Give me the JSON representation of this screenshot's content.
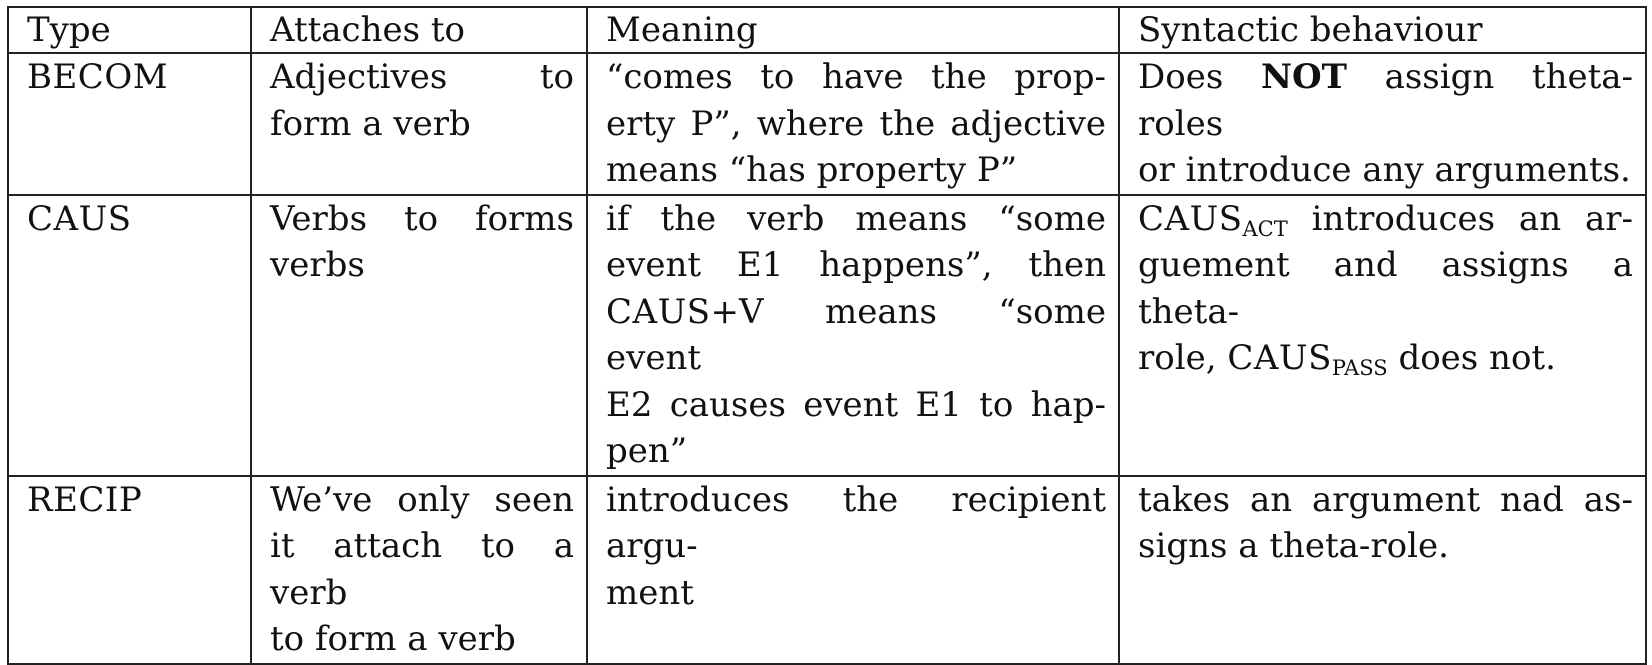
{
  "headers": {
    "type": "Type",
    "attaches": "Attaches to",
    "meaning": "Meaning",
    "syntax": "Syntactic behaviour"
  },
  "rows": [
    {
      "type": "BECOM",
      "attaches": [
        "Adjectives to",
        "form a verb"
      ],
      "meaning": [
        "“comes to have the prop-",
        "erty P”, where the adjective",
        "means “has property P”"
      ],
      "syntax": {
        "pre": "Does ",
        "bold": "NOT",
        "post_line1": " assign theta-roles",
        "line2": "or introduce any arguments."
      }
    },
    {
      "type": "CAUS",
      "attaches": [
        "Verbs to forms",
        "verbs"
      ],
      "meaning": {
        "line1": "if the verb means “some",
        "line2": "event E1 happens”, then",
        "line3_sc": "CAUS",
        "line3_rest": "+V means “some event",
        "line4": "E2 causes event E1 to hap-",
        "line5": "pen”"
      },
      "syntax": {
        "caus": "CAUS",
        "sub_act": "ACT",
        "line1_rest": " introduces an ar-",
        "line2": "guement and assigns a theta-",
        "line3_pre": "role, ",
        "caus2": "CAUS",
        "sub_pass": "PASS",
        "line3_post": " does not."
      }
    },
    {
      "type": "RECIP",
      "attaches": [
        "We’ve only seen",
        "it attach to a verb",
        "to form a verb"
      ],
      "meaning": [
        "introduces the recipient argu-",
        "ment"
      ],
      "syntax": [
        "takes an argument nad as-",
        "signs a theta-role."
      ]
    }
  ]
}
